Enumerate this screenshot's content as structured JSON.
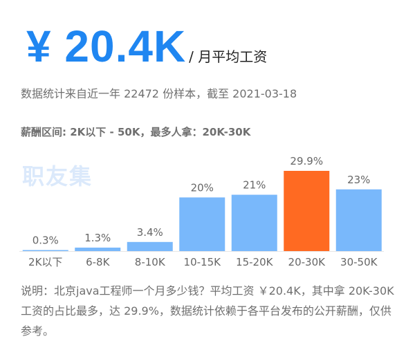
{
  "salary": {
    "value": "¥ 20.4K",
    "unit": "/ 月平均工资"
  },
  "subtitle": "数据统计来自近一年 22472 份样本，截至 2021-03-18",
  "range_text": "薪酬区间: 2K以下 - 50K，最多人拿：20K-30K",
  "watermark": "职友集",
  "colors": {
    "accent": "#1f86f1",
    "bar": "#79b8fb",
    "highlight": "#ff6a22"
  },
  "chart_data": {
    "type": "bar",
    "categories": [
      "2K以下",
      "6-8K",
      "8-10K",
      "10-15K",
      "15-20K",
      "20-30K",
      "30-50K"
    ],
    "values": [
      0.3,
      1.3,
      3.4,
      20,
      21,
      29.9,
      23
    ],
    "value_labels": [
      "0.3%",
      "1.3%",
      "3.4%",
      "20%",
      "21%",
      "29.9%",
      "23%"
    ],
    "highlight_index": 5,
    "unit": "%"
  },
  "note": "说明：北京java工程师一个月多少钱？平均工资 ￥20.4K，其中拿 20K-30K 工资的占比最多，达 29.9%，数据统计依赖于各平台发布的公开薪酬，仅供参考。"
}
